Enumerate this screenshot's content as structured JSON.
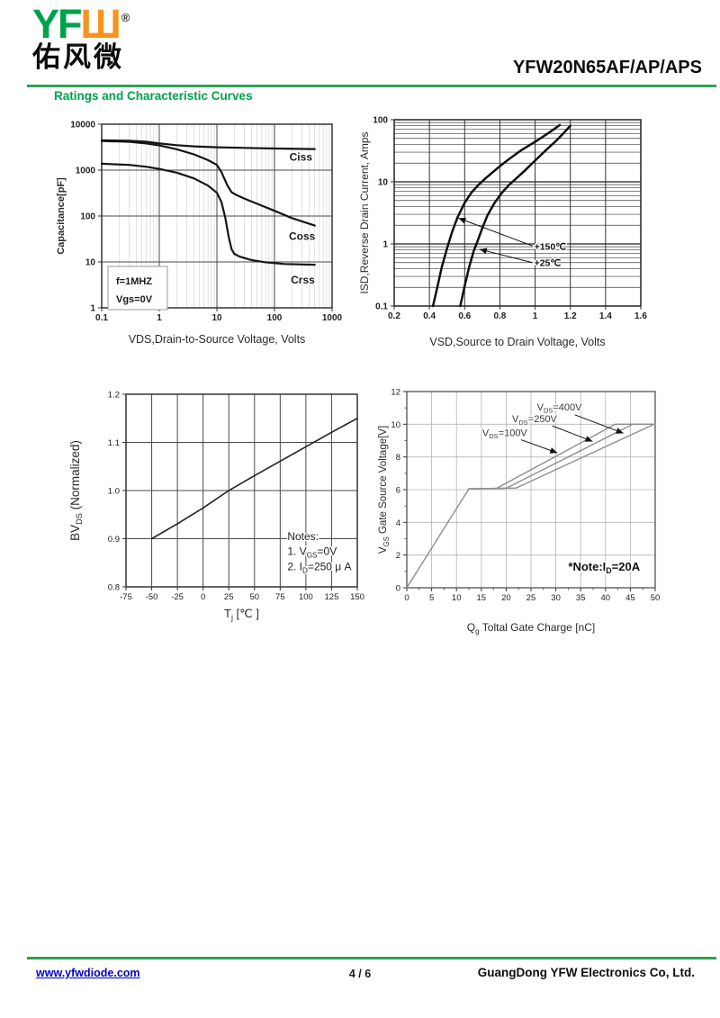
{
  "header": {
    "logo_yf": "YF",
    "logo_w": "Ш",
    "registered": "®",
    "logo_cn": "佑风微",
    "part_number": "YFW20N65AF/AP/APS",
    "section_title": "Ratings and Characteristic Curves",
    "brand_green": "#00a14d",
    "brand_orange": "#f7941e"
  },
  "footer": {
    "website": "www.yfwdiode.com",
    "page_indicator": "4 / 6",
    "company": "GuangDong YFW Electronics Co, Ltd.",
    "link_color": "#0000cd"
  },
  "chart_data": [
    {
      "id": "capacitance-vs-vds",
      "type": "line",
      "x_axis": {
        "scale": "log",
        "min": 0.1,
        "max": 1000,
        "ticks": [
          0.1,
          1,
          10,
          100,
          1000
        ],
        "tick_labels": [
          "0.1",
          "1",
          "10",
          "100",
          "1000"
        ],
        "label": "VDS,Drain-to-Source Voltage, Volts"
      },
      "y_axis": {
        "scale": "log",
        "min": 1,
        "max": 10000,
        "ticks": [
          1,
          10,
          100,
          1000,
          10000
        ],
        "tick_labels": [
          "1",
          "10",
          "100",
          "1000",
          "10000"
        ],
        "label": "Capacitance[pF]"
      },
      "series": [
        {
          "name": "Ciss",
          "points": [
            [
              0.1,
              4450
            ],
            [
              0.3,
              4350
            ],
            [
              0.6,
              4150
            ],
            [
              1,
              3800
            ],
            [
              2,
              3500
            ],
            [
              4,
              3300
            ],
            [
              10,
              3150
            ],
            [
              30,
              3050
            ],
            [
              100,
              2950
            ],
            [
              500,
              2870
            ]
          ]
        },
        {
          "name": "Coss",
          "points": [
            [
              0.1,
              4300
            ],
            [
              0.3,
              4150
            ],
            [
              0.6,
              3800
            ],
            [
              1,
              3450
            ],
            [
              2,
              2850
            ],
            [
              4,
              2200
            ],
            [
              7,
              1650
            ],
            [
              10,
              1300
            ],
            [
              12,
              900
            ],
            [
              15,
              480
            ],
            [
              18,
              330
            ],
            [
              22,
              285
            ],
            [
              30,
              240
            ],
            [
              50,
              185
            ],
            [
              100,
              130
            ],
            [
              200,
              90
            ],
            [
              500,
              62
            ]
          ]
        },
        {
          "name": "Crss",
          "points": [
            [
              0.1,
              1380
            ],
            [
              0.3,
              1300
            ],
            [
              0.6,
              1180
            ],
            [
              1,
              1060
            ],
            [
              2,
              880
            ],
            [
              4,
              660
            ],
            [
              7,
              460
            ],
            [
              10,
              320
            ],
            [
              12,
              200
            ],
            [
              14,
              90
            ],
            [
              16,
              35
            ],
            [
              18,
              19
            ],
            [
              20,
              15
            ],
            [
              25,
              13
            ],
            [
              40,
              11
            ],
            [
              70,
              9.8
            ],
            [
              150,
              9
            ],
            [
              500,
              8.7
            ]
          ]
        }
      ],
      "curve_labels": [
        {
          "segs": "Ciss",
          "x": 182,
          "y": 1600
        },
        {
          "segs": "Coss",
          "x": 178,
          "y": 30
        },
        {
          "segs": "Crss",
          "x": 192,
          "y": 3.4
        }
      ],
      "inset_lines": [
        "f=1MHZ",
        "Vgs=0V"
      ],
      "arrows": []
    },
    {
      "id": "reverse-drain-current-vs-vsd",
      "type": "line",
      "x_axis": {
        "scale": "linear",
        "min": 0.2,
        "max": 1.6,
        "ticks": [
          0.2,
          0.4,
          0.6,
          0.8,
          1,
          1.2,
          1.4,
          1.6
        ],
        "tick_labels": [
          "0.2",
          "0.4",
          "0.6",
          "0.8",
          "1",
          "1.2",
          "1.4",
          "1.6"
        ],
        "label": "VSD,Source to Drain Voltage, Volts"
      },
      "y_axis": {
        "scale": "log",
        "min": 0.1,
        "max": 100,
        "ticks": [
          0.1,
          1,
          10,
          100
        ],
        "tick_labels": [
          "0.1",
          "1",
          "10",
          "100"
        ],
        "label": "ISD,Reverse Drain Current, Amps"
      },
      "series": [
        {
          "name": "+150℃",
          "points": [
            [
              0.42,
              0.1
            ],
            [
              0.445,
              0.2
            ],
            [
              0.47,
              0.42
            ],
            [
              0.5,
              0.85
            ],
            [
              0.53,
              1.6
            ],
            [
              0.56,
              2.7
            ],
            [
              0.6,
              4.6
            ],
            [
              0.64,
              6.8
            ],
            [
              0.68,
              9
            ],
            [
              0.72,
              11.5
            ],
            [
              0.78,
              16
            ],
            [
              0.85,
              23
            ],
            [
              0.92,
              32
            ],
            [
              1,
              44
            ],
            [
              1.08,
              62
            ],
            [
              1.14,
              82
            ]
          ]
        },
        {
          "name": "+25℃",
          "points": [
            [
              0.575,
              0.1
            ],
            [
              0.6,
              0.21
            ],
            [
              0.625,
              0.42
            ],
            [
              0.65,
              0.75
            ],
            [
              0.67,
              1.05
            ],
            [
              0.7,
              1.8
            ],
            [
              0.73,
              2.9
            ],
            [
              0.77,
              4.6
            ],
            [
              0.81,
              6.6
            ],
            [
              0.85,
              8.8
            ],
            [
              0.88,
              10.5
            ],
            [
              0.94,
              15
            ],
            [
              1,
              22
            ],
            [
              1.06,
              32
            ],
            [
              1.12,
              46
            ],
            [
              1.16,
              60
            ],
            [
              1.2,
              80
            ]
          ]
        }
      ],
      "curve_labels": [
        {
          "segs": "+150℃",
          "x": 0.995,
          "y": 0.8
        },
        {
          "segs": "+25℃",
          "x": 0.995,
          "y": 0.44
        }
      ],
      "arrows": [
        {
          "from": [
            0.985,
            0.93
          ],
          "to": [
            0.565,
            2.6
          ]
        },
        {
          "from": [
            0.985,
            0.5
          ],
          "to": [
            0.685,
            0.82
          ]
        }
      ]
    },
    {
      "id": "bvds-normalized-vs-tj",
      "type": "line",
      "x_axis": {
        "scale": "linear",
        "min": -75,
        "max": 150,
        "ticks": [
          -75,
          -50,
          -25,
          0,
          25,
          50,
          75,
          100,
          125,
          150
        ],
        "tick_labels": [
          "-75",
          "-50",
          "-25",
          "0",
          "25",
          "50",
          "75",
          "100",
          "125",
          "150"
        ],
        "label": [
          {
            "t": "T"
          },
          {
            "t": "j",
            "sub": true
          },
          {
            "t": " [℃ ]"
          }
        ]
      },
      "y_axis": {
        "scale": "linear",
        "min": 0.8,
        "max": 1.2,
        "ticks": [
          0.8,
          0.9,
          1,
          1.1,
          1.2
        ],
        "tick_labels": [
          "0.8",
          "0.9",
          "1.0",
          "1.1",
          "1.2"
        ],
        "grid_ticks": [
          0.9,
          1,
          1.1
        ],
        "label": [
          {
            "t": "BV"
          },
          {
            "t": "DS",
            "sub": true
          },
          {
            "t": " (Normalized)"
          }
        ]
      },
      "series": [
        {
          "name": "BVDS normalized",
          "points": [
            [
              -50,
              0.9
            ],
            [
              -25,
              0.931
            ],
            [
              0,
              0.964
            ],
            [
              25,
              1
            ],
            [
              50,
              1.031
            ],
            [
              75,
              1.061
            ],
            [
              100,
              1.091
            ],
            [
              125,
              1.121
            ],
            [
              150,
              1.15
            ]
          ]
        }
      ],
      "curve_labels": [
        {
          "segs": "Notes:",
          "x": 82,
          "y": 0.8975,
          "fs": 12
        },
        {
          "segs": [
            {
              "t": "1. V"
            },
            {
              "t": "GS",
              "sub": true
            },
            {
              "t": "=0V"
            }
          ],
          "x": 82,
          "y": 0.866,
          "fs": 12
        },
        {
          "segs": [
            {
              "t": "2. I"
            },
            {
              "t": "D",
              "sub": true
            },
            {
              "t": "=250 μ A"
            }
          ],
          "x": 82,
          "y": 0.8345,
          "fs": 12
        }
      ],
      "arrows": []
    },
    {
      "id": "gate-charge",
      "type": "line",
      "x_axis": {
        "scale": "linear",
        "min": 0,
        "max": 50,
        "ticks": [
          0,
          5,
          10,
          15,
          20,
          25,
          30,
          35,
          40,
          45,
          50
        ],
        "tick_labels": [
          "0",
          "5",
          "10",
          "15",
          "20",
          "25",
          "30",
          "35",
          "40",
          "45",
          "50"
        ],
        "minor_ticks": [
          2.5,
          7.5,
          12.5,
          17.5,
          22.5,
          27.5,
          32.5,
          37.5,
          42.5,
          47.5
        ],
        "label": [
          {
            "t": "Q"
          },
          {
            "t": "g",
            "sub": true
          },
          {
            "t": " Toltal Gate Charge [nC]"
          }
        ]
      },
      "y_axis": {
        "scale": "linear",
        "min": 0,
        "max": 12,
        "ticks": [
          0,
          2,
          4,
          6,
          8,
          10,
          12
        ],
        "tick_labels": [
          "0",
          "2",
          "4",
          "6",
          "8",
          "10",
          "12"
        ],
        "minor_ticks": [
          1,
          3,
          5,
          7,
          9,
          11
        ],
        "label": [
          {
            "t": "V"
          },
          {
            "t": "GS",
            "sub": true
          },
          {
            "t": " Gate Source Voltage[V]"
          }
        ]
      },
      "series": [
        {
          "name": "gate ramp",
          "points": [
            [
              0,
              0
            ],
            [
              12.5,
              6.05
            ]
          ]
        },
        {
          "name": "VDS=100V",
          "points": [
            [
              12.5,
              6.05
            ],
            [
              18,
              6.07
            ],
            [
              42,
              10
            ],
            [
              50,
              10
            ]
          ]
        },
        {
          "name": "VDS=250V",
          "points": [
            [
              12.5,
              6.05
            ],
            [
              20,
              6.08
            ],
            [
              45.5,
              10
            ],
            [
              50,
              10
            ]
          ]
        },
        {
          "name": "VDS=400V",
          "points": [
            [
              12.5,
              6.05
            ],
            [
              22,
              6.1
            ],
            [
              49.8,
              10
            ]
          ]
        }
      ],
      "curve_labels": [
        {
          "segs": [
            {
              "t": "V"
            },
            {
              "t": "DS",
              "sub": true
            },
            {
              "t": "=400V"
            }
          ],
          "x": 26.2,
          "y": 10.85,
          "fs": 11
        },
        {
          "segs": [
            {
              "t": "V"
            },
            {
              "t": "DS",
              "sub": true
            },
            {
              "t": "=250V"
            }
          ],
          "x": 21.2,
          "y": 10.12,
          "fs": 11
        },
        {
          "segs": [
            {
              "t": "V"
            },
            {
              "t": "DS",
              "sub": true
            },
            {
              "t": "=100V"
            }
          ],
          "x": 15.2,
          "y": 9.28,
          "fs": 11
        },
        {
          "segs": [
            {
              "t": "*Note:I"
            },
            {
              "t": "D",
              "sub": true
            },
            {
              "t": "=20A"
            }
          ],
          "x": 32.5,
          "y": 1.05,
          "fs": 13,
          "bold": true,
          "color": "#111111"
        }
      ],
      "arrows": [
        {
          "from": [
            33.8,
            10.58
          ],
          "to": [
            43.6,
            9.45
          ]
        },
        {
          "from": [
            29.3,
            9.9
          ],
          "to": [
            37.4,
            8.95
          ]
        },
        {
          "from": [
            23,
            9.05
          ],
          "to": [
            30.3,
            8.25
          ]
        }
      ]
    }
  ]
}
